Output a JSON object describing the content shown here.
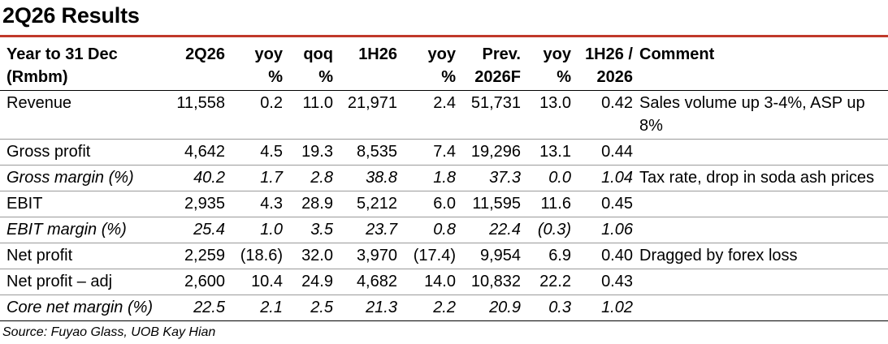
{
  "title": "2Q26 Results",
  "header": {
    "row1": [
      "Year to 31 Dec",
      "2Q26",
      "yoy",
      "qoq",
      "1H26",
      "yoy",
      "Prev.",
      "yoy",
      "1H26 /",
      "Comment"
    ],
    "row2": [
      "(Rmbm)",
      "",
      "%",
      "%",
      "",
      "%",
      "2026F",
      "%",
      "2026",
      ""
    ]
  },
  "rows": [
    {
      "label": "Revenue",
      "vals": [
        "11,558",
        "0.2",
        "11.0",
        "21,971",
        "2.4",
        "51,731",
        "13.0",
        "0.42"
      ],
      "comment": "Sales volume up 3-4%, ASP up 8%"
    },
    {
      "label": "Gross profit",
      "vals": [
        "4,642",
        "4.5",
        "19.3",
        "8,535",
        "7.4",
        "19,296",
        "13.1",
        "0.44"
      ],
      "comment": ""
    },
    {
      "label": "Gross margin (%)",
      "vals": [
        "40.2",
        "1.7",
        "2.8",
        "38.8",
        "1.8",
        "37.3",
        "0.0",
        "1.04"
      ],
      "comment": "Tax rate, drop in soda ash prices"
    },
    {
      "label": "EBIT",
      "vals": [
        "2,935",
        "4.3",
        "28.9",
        "5,212",
        "6.0",
        "11,595",
        "11.6",
        "0.45"
      ],
      "comment": ""
    },
    {
      "label": "EBIT margin (%)",
      "vals": [
        "25.4",
        "1.0",
        "3.5",
        "23.7",
        "0.8",
        "22.4",
        "(0.3)",
        "1.06"
      ],
      "comment": ""
    },
    {
      "label": "Net profit",
      "vals": [
        "2,259",
        "(18.6)",
        "32.0",
        "3,970",
        "(17.4)",
        "9,954",
        "6.9",
        "0.40"
      ],
      "comment": "Dragged by forex loss"
    },
    {
      "label": "Net profit – adj",
      "vals": [
        "2,600",
        "10.4",
        "24.9",
        "4,682",
        "14.0",
        "10,832",
        "22.2",
        "0.43"
      ],
      "comment": ""
    },
    {
      "label": "Core net margin (%)",
      "vals": [
        "22.5",
        "2.1",
        "2.5",
        "21.3",
        "2.2",
        "20.9",
        "0.3",
        "1.02"
      ],
      "comment": ""
    }
  ],
  "source": "Source: Fuyao Glass, UOB Kay Hian"
}
